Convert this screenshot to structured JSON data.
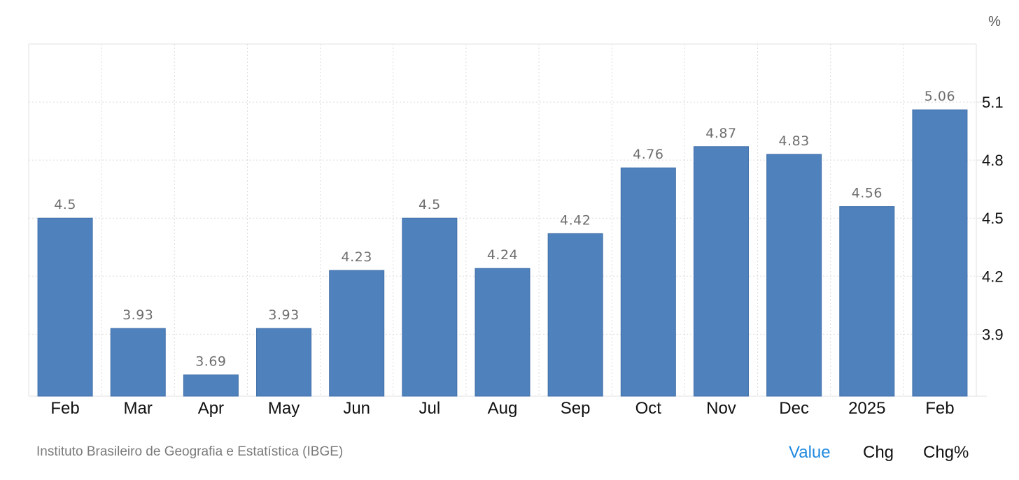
{
  "chart_data": {
    "type": "bar",
    "unit_label": "%",
    "categories": [
      "Feb",
      "Mar",
      "Apr",
      "May",
      "Jun",
      "Jul",
      "Aug",
      "Sep",
      "Oct",
      "Nov",
      "Dec",
      "2025",
      "Feb"
    ],
    "values": [
      4.5,
      3.93,
      3.69,
      3.93,
      4.23,
      4.5,
      4.24,
      4.42,
      4.76,
      4.87,
      4.83,
      4.56,
      5.06
    ],
    "value_labels": [
      "4.5",
      "3.93",
      "3.69",
      "3.93",
      "4.23",
      "4.5",
      "4.24",
      "4.42",
      "4.76",
      "4.87",
      "4.83",
      "4.56",
      "5.06"
    ],
    "y_ticks": [
      3.9,
      4.2,
      4.5,
      4.8,
      5.1
    ],
    "y_tick_labels": [
      "3.9",
      "4.2",
      "4.5",
      "4.8",
      "5.1"
    ],
    "ylim": [
      3.58,
      5.4
    ],
    "y_axis_side": "right",
    "grid": true,
    "color": "#4f81bd"
  },
  "footer": {
    "source": "Instituto Brasileiro de Geografia e Estatística (IBGE)",
    "tabs": [
      {
        "label": "Value",
        "active": true
      },
      {
        "label": "Chg",
        "active": false
      },
      {
        "label": "Chg%",
        "active": false
      }
    ],
    "active_color": "#1f8ae0"
  }
}
